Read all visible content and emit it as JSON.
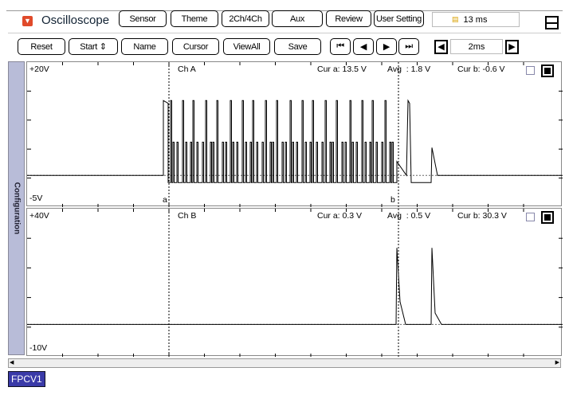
{
  "app": {
    "title": "Oscilloscope",
    "menu_icon": "down-arrow-icon",
    "layout_icon": "split-view-icon"
  },
  "top_buttons": [
    "Sensor",
    "Theme",
    "2Ch/4Ch",
    "Aux",
    "Review",
    "User Setting"
  ],
  "time_display": {
    "icon": "scale-icon",
    "value": "13 ms"
  },
  "toolbar": {
    "reset": "Reset",
    "start": "Start",
    "name": "Name",
    "cursor": "Cursor",
    "viewall": "ViewAll",
    "save": "Save"
  },
  "nav_buttons": [
    "first-icon",
    "prev-icon",
    "next-icon",
    "last-icon"
  ],
  "timebase": {
    "value": "2ms"
  },
  "sidebar": {
    "label": "Configuration"
  },
  "channels": [
    {
      "name": "Ch A",
      "top": "+20V",
      "bottom": "-5V",
      "cur_a": "Cur a: 13.5 V",
      "avg": "Avg  : 1.8 V",
      "cur_b": "Cur b: -0.6 V",
      "vmax": 20,
      "vmin": -5
    },
    {
      "name": "Ch B",
      "top": "+40V",
      "bottom": "-10V",
      "cur_a": "Cur a: 0.3 V",
      "avg": "Avg  : 0.5 V",
      "cur_b": "Cur b: 30.3 V",
      "vmax": 40,
      "vmin": -10
    }
  ],
  "cursors": {
    "a": "a",
    "b": "b"
  },
  "footer": {
    "tag": "FPCV1"
  },
  "colors": {
    "tag_bg": "#3a3aa8",
    "sidebar": "#b8bcd8",
    "menu_icon": "#e04a2a"
  }
}
